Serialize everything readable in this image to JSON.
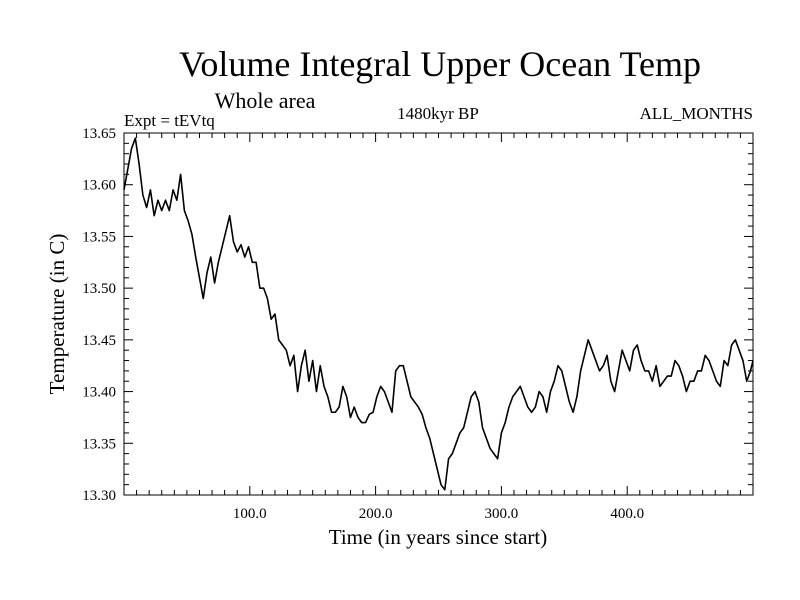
{
  "chart_data": {
    "type": "line",
    "title": "Volume Integral Upper Ocean Temp",
    "subtitle": "Whole area",
    "experiment_label": "Expt = tEVtq",
    "period_label": "1480kyr BP",
    "months_label": "ALL_MONTHS",
    "xlabel": "Time (in years since start)",
    "ylabel": "Temperature (in C)",
    "xlim": [
      0,
      500
    ],
    "ylim": [
      13.3,
      13.65
    ],
    "x_ticks": [
      100,
      200,
      300,
      400
    ],
    "x_tick_labels": [
      "100.0",
      "200.0",
      "300.0",
      "400.0"
    ],
    "y_ticks": [
      13.3,
      13.35,
      13.4,
      13.45,
      13.5,
      13.55,
      13.6,
      13.65
    ],
    "y_tick_labels": [
      "13.30",
      "13.35",
      "13.40",
      "13.45",
      "13.50",
      "13.55",
      "13.60",
      "13.65"
    ],
    "grid": false,
    "series": [
      {
        "name": "Temperature",
        "color": "#000000",
        "x": [
          0,
          3,
          6,
          9,
          12,
          15,
          18,
          21,
          24,
          27,
          30,
          33,
          36,
          39,
          42,
          45,
          48,
          51,
          54,
          57,
          60,
          63,
          66,
          69,
          72,
          75,
          78,
          81,
          84,
          87,
          90,
          93,
          96,
          99,
          102,
          105,
          108,
          111,
          114,
          117,
          120,
          123,
          126,
          129,
          132,
          135,
          138,
          141,
          144,
          147,
          150,
          153,
          156,
          159,
          162,
          165,
          168,
          171,
          174,
          177,
          180,
          183,
          186,
          189,
          192,
          195,
          198,
          201,
          204,
          207,
          210,
          213,
          216,
          219,
          222,
          225,
          228,
          231,
          234,
          237,
          240,
          243,
          246,
          249,
          252,
          255,
          258,
          261,
          264,
          267,
          270,
          273,
          276,
          279,
          282,
          285,
          288,
          291,
          294,
          297,
          300,
          303,
          306,
          309,
          312,
          315,
          318,
          321,
          324,
          327,
          330,
          333,
          336,
          339,
          342,
          345,
          348,
          351,
          354,
          357,
          360,
          363,
          366,
          369,
          372,
          375,
          378,
          381,
          384,
          387,
          390,
          393,
          396,
          399,
          402,
          405,
          408,
          411,
          414,
          417,
          420,
          423,
          426,
          429,
          432,
          435,
          438,
          441,
          444,
          447,
          450,
          453,
          456,
          459,
          462,
          465,
          468,
          471,
          474,
          477,
          480,
          483,
          486,
          489,
          492,
          495,
          498,
          500
        ],
        "y": [
          13.595,
          13.615,
          13.635,
          13.645,
          13.62,
          13.59,
          13.578,
          13.595,
          13.57,
          13.585,
          13.575,
          13.585,
          13.575,
          13.595,
          13.585,
          13.61,
          13.575,
          13.565,
          13.552,
          13.53,
          13.51,
          13.49,
          13.515,
          13.53,
          13.505,
          13.525,
          13.54,
          13.555,
          13.57,
          13.545,
          13.535,
          13.542,
          13.53,
          13.54,
          13.525,
          13.525,
          13.5,
          13.5,
          13.49,
          13.47,
          13.475,
          13.45,
          13.445,
          13.44,
          13.425,
          13.435,
          13.4,
          13.425,
          13.44,
          13.41,
          13.43,
          13.4,
          13.425,
          13.405,
          13.395,
          13.38,
          13.38,
          13.385,
          13.405,
          13.395,
          13.375,
          13.385,
          13.375,
          13.37,
          13.37,
          13.378,
          13.38,
          13.395,
          13.405,
          13.4,
          13.39,
          13.38,
          13.42,
          13.425,
          13.425,
          13.41,
          13.395,
          13.39,
          13.385,
          13.378,
          13.365,
          13.355,
          13.34,
          13.325,
          13.31,
          13.305,
          13.335,
          13.34,
          13.35,
          13.36,
          13.365,
          13.38,
          13.395,
          13.4,
          13.39,
          13.365,
          13.355,
          13.345,
          13.34,
          13.335,
          13.36,
          13.37,
          13.385,
          13.395,
          13.4,
          13.405,
          13.395,
          13.385,
          13.38,
          13.385,
          13.4,
          13.395,
          13.38,
          13.4,
          13.41,
          13.425,
          13.42,
          13.405,
          13.39,
          13.38,
          13.395,
          13.42,
          13.435,
          13.45,
          13.44,
          13.43,
          13.42,
          13.425,
          13.435,
          13.41,
          13.4,
          13.42,
          13.44,
          13.43,
          13.42,
          13.44,
          13.445,
          13.43,
          13.42,
          13.42,
          13.41,
          13.425,
          13.405,
          13.41,
          13.415,
          13.415,
          13.43,
          13.425,
          13.415,
          13.4,
          13.41,
          13.41,
          13.42,
          13.42,
          13.435,
          13.43,
          13.42,
          13.41,
          13.405,
          13.43,
          13.425,
          13.445,
          13.45,
          13.44,
          13.43,
          13.41,
          13.42,
          13.43
        ]
      }
    ]
  }
}
